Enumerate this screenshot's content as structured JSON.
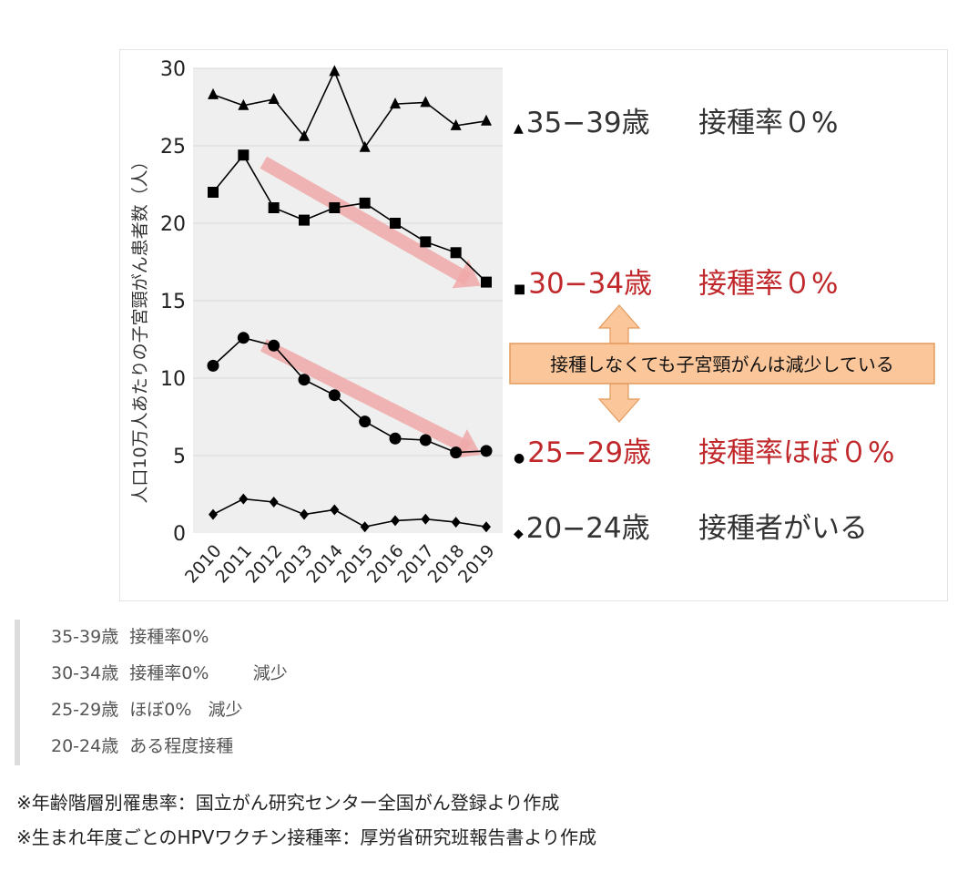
{
  "chart_data": {
    "type": "line",
    "ylabel": "人口10万人あたりの子宮頸がん患者数（人）",
    "xlabel": "",
    "ylim": [
      0,
      30
    ],
    "yticks": [
      0,
      5,
      10,
      15,
      20,
      25,
      30
    ],
    "categories": [
      "2010",
      "2011",
      "2012",
      "2013",
      "2014",
      "2015",
      "2016",
      "2017",
      "2018",
      "2019"
    ],
    "series": [
      {
        "name": "35−39歳",
        "marker": "triangle",
        "values": [
          28.3,
          27.6,
          28.0,
          25.6,
          29.8,
          24.9,
          27.7,
          27.8,
          26.3,
          26.6
        ],
        "label_prefix": "▲",
        "label_age": "35−39歳",
        "label_status": "接種率０%",
        "label_color": "#333333"
      },
      {
        "name": "30−34歳",
        "marker": "square",
        "values": [
          22.0,
          24.4,
          21.0,
          20.2,
          21.0,
          21.3,
          20.0,
          18.8,
          18.1,
          16.2
        ],
        "label_prefix": "■",
        "label_age": "30−34歳",
        "label_status": "接種率０%",
        "label_color": "#c0282b"
      },
      {
        "name": "25−29歳",
        "marker": "circle",
        "values": [
          10.8,
          12.6,
          12.1,
          9.9,
          8.9,
          7.2,
          6.1,
          6.0,
          5.2,
          5.3
        ],
        "label_prefix": "●",
        "label_age": "25−29歳",
        "label_status": "接種率ほぼ０%",
        "label_color": "#c0282b"
      },
      {
        "name": "20−24歳",
        "marker": "diamond",
        "values": [
          1.2,
          2.2,
          2.0,
          1.2,
          1.5,
          0.4,
          0.8,
          0.9,
          0.7,
          0.4
        ],
        "label_prefix": "◆",
        "label_age": "20−24歳",
        "label_status": "接種者がいる",
        "label_color": "#333333"
      }
    ],
    "annotation": "接種しなくても子宮頸がんは減少している",
    "trend_arrows": [
      {
        "series": "30−34歳",
        "from_year": "2011",
        "to_year": "2019"
      },
      {
        "series": "25−29歳",
        "from_year": "2011",
        "to_year": "2019"
      }
    ],
    "colors": {
      "plot_bg": "#efefef",
      "trend_arrow": "#f0a8a8",
      "callout_fill": "#fbc69a",
      "callout_border": "#e39a5c",
      "line": "#000000"
    }
  },
  "quote_lines": [
    "35-39歳  接種率0%",
    "30-34歳  接種率0%        減少",
    "25-29歳  ほぼ0%   減少",
    "20-24歳  ある程度接種"
  ],
  "notes": [
    "※年齢階層別罹患率：国立がん研究センター全国がん登録より作成",
    "※生まれ年度ごとのHPVワクチン接種率：厚労省研究班報告書より作成"
  ]
}
